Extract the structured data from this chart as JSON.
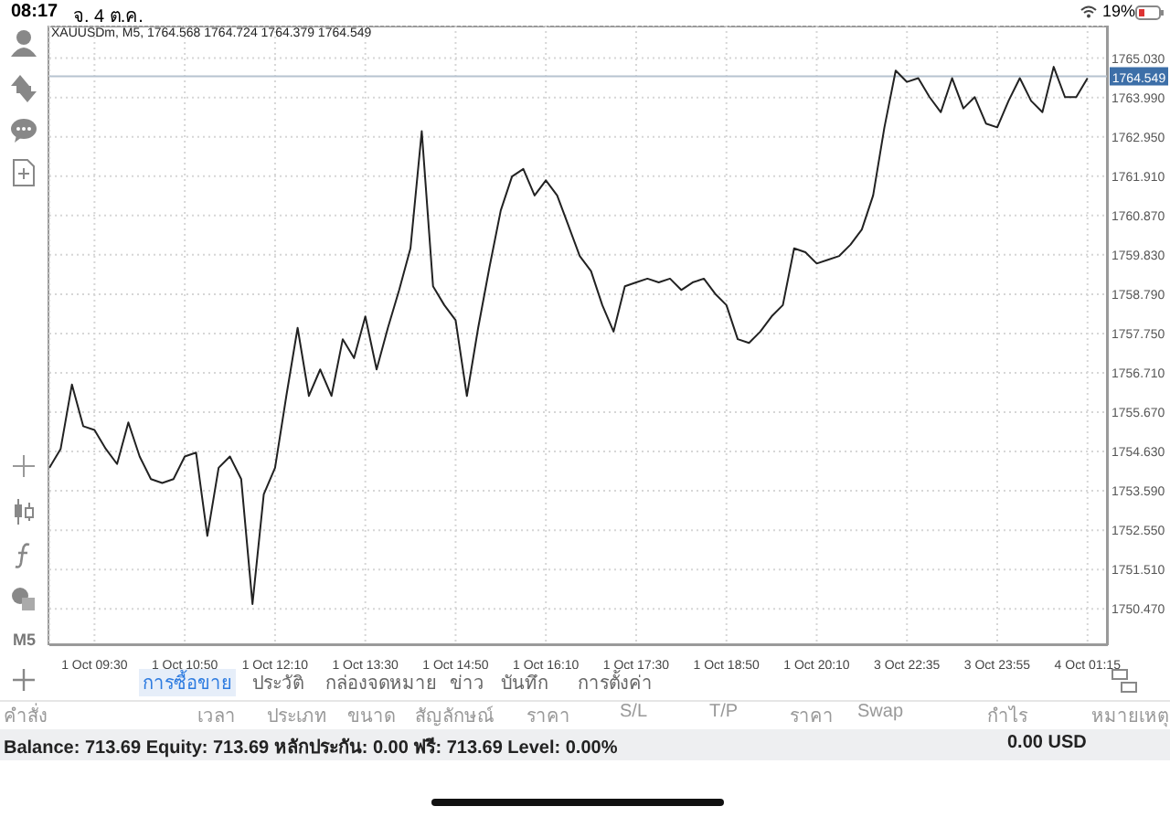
{
  "chart_data": {
    "type": "line",
    "title": "XAUUSDm, M5, 1764.568 1764.724 1764.379 1764.549",
    "categories": [
      null,
      null,
      null,
      null,
      "1 Oct 09:30",
      null,
      null,
      null,
      null,
      null,
      null,
      null,
      "1 Oct 10:50",
      null,
      null,
      null,
      null,
      null,
      null,
      null,
      "1 Oct 12:10",
      null,
      null,
      null,
      null,
      null,
      null,
      null,
      "1 Oct 13:30",
      null,
      null,
      null,
      null,
      null,
      null,
      null,
      "1 Oct 14:50",
      null,
      null,
      null,
      null,
      null,
      null,
      null,
      "1 Oct 16:10",
      null,
      null,
      null,
      null,
      null,
      null,
      null,
      "1 Oct 17:30",
      null,
      null,
      null,
      null,
      null,
      null,
      null,
      "1 Oct 18:50",
      null,
      null,
      null,
      null,
      null,
      null,
      null,
      "1 Oct 20:10",
      null,
      null,
      null,
      null,
      null,
      null,
      null,
      "3 Oct 22:35",
      null,
      null,
      null,
      null,
      null,
      null,
      null,
      "3 Oct 23:55",
      null,
      null,
      null,
      null,
      null,
      null,
      null,
      "4 Oct 01:15"
    ],
    "series": [
      {
        "color": "#222222",
        "values": [
          1754.2,
          1754.7,
          1756.4,
          1755.3,
          1755.2,
          1754.7,
          1754.3,
          1755.4,
          1754.5,
          1753.9,
          1753.8,
          1753.9,
          1754.5,
          1754.6,
          1752.4,
          1754.2,
          1754.5,
          1753.9,
          1750.6,
          1753.5,
          1754.2,
          1756.1,
          1757.9,
          1756.1,
          1756.8,
          1756.1,
          1757.6,
          1757.1,
          1758.2,
          1756.8,
          1757.9,
          1758.9,
          1760.0,
          1763.1,
          1759.0,
          1758.5,
          1758.1,
          1756.1,
          1757.9,
          1759.5,
          1761.0,
          1761.9,
          1762.1,
          1761.4,
          1761.8,
          1761.4,
          1760.6,
          1759.8,
          1759.4,
          1758.5,
          1757.8,
          1759.0,
          1759.1,
          1759.2,
          1759.1,
          1759.2,
          1758.9,
          1759.1,
          1759.2,
          1758.8,
          1758.5,
          1757.6,
          1757.5,
          1757.8,
          1758.2,
          1758.5,
          1760.0,
          1759.9,
          1759.6,
          1759.7,
          1759.8,
          1760.1,
          1760.5,
          1761.4,
          1763.2,
          1764.7,
          1764.4,
          1764.5,
          1764.0,
          1763.6,
          1764.5,
          1763.7,
          1764.0,
          1763.3,
          1763.2,
          1763.9,
          1764.5,
          1763.9,
          1763.6,
          1764.8,
          1764.0,
          1764.0,
          1764.5
        ]
      }
    ],
    "ylim": [
      1749.51,
      1765.89
    ],
    "yticks": [
      {
        "value": 1750.47,
        "label": "1750.470"
      },
      {
        "value": 1751.51,
        "label": "1751.510"
      },
      {
        "value": 1752.55,
        "label": "1752.550"
      },
      {
        "value": 1753.59,
        "label": "1753.590"
      },
      {
        "value": 1754.63,
        "label": "1754.630"
      },
      {
        "value": 1755.67,
        "label": "1755.670"
      },
      {
        "value": 1756.71,
        "label": "1756.710"
      },
      {
        "value": 1757.75,
        "label": "1757.750"
      },
      {
        "value": 1758.79,
        "label": "1758.790"
      },
      {
        "value": 1759.83,
        "label": "1759.830"
      },
      {
        "value": 1760.87,
        "label": "1760.870"
      },
      {
        "value": 1761.91,
        "label": "1761.910"
      },
      {
        "value": 1762.95,
        "label": "1762.950"
      },
      {
        "value": 1763.99,
        "label": "1763.990"
      },
      {
        "value": 1765.03,
        "label": "1765.030"
      }
    ],
    "ref_lines": [
      {
        "axis": "y",
        "value": 1764.549,
        "label": "1764.549",
        "color": "#b7c3d0"
      }
    ],
    "grid": true,
    "marker": "none",
    "line_style": "solid",
    "annotations": [
      "08:17",
      "จ. 4 ต.ค.",
      "19%",
      "M5",
      "การซื้อขาย",
      "ประวัติ",
      "กล่องจดหมาย",
      "ข่าว",
      "บันทึก",
      "การตั้งค่า",
      "คำสั่ง",
      "เวลา",
      "ประเภท",
      "ขนาด",
      "สัญลักษณ์",
      "ราคา",
      "S/L",
      "T/P",
      "ราคา",
      "Swap",
      "กำไร",
      "หมายเหตุ",
      "Balance: 713.69 Equity: 713.69 หลักประกัน: 0.00 ฟรี: 713.69 Level: 0.00%",
      "0.00  USD"
    ]
  }
}
